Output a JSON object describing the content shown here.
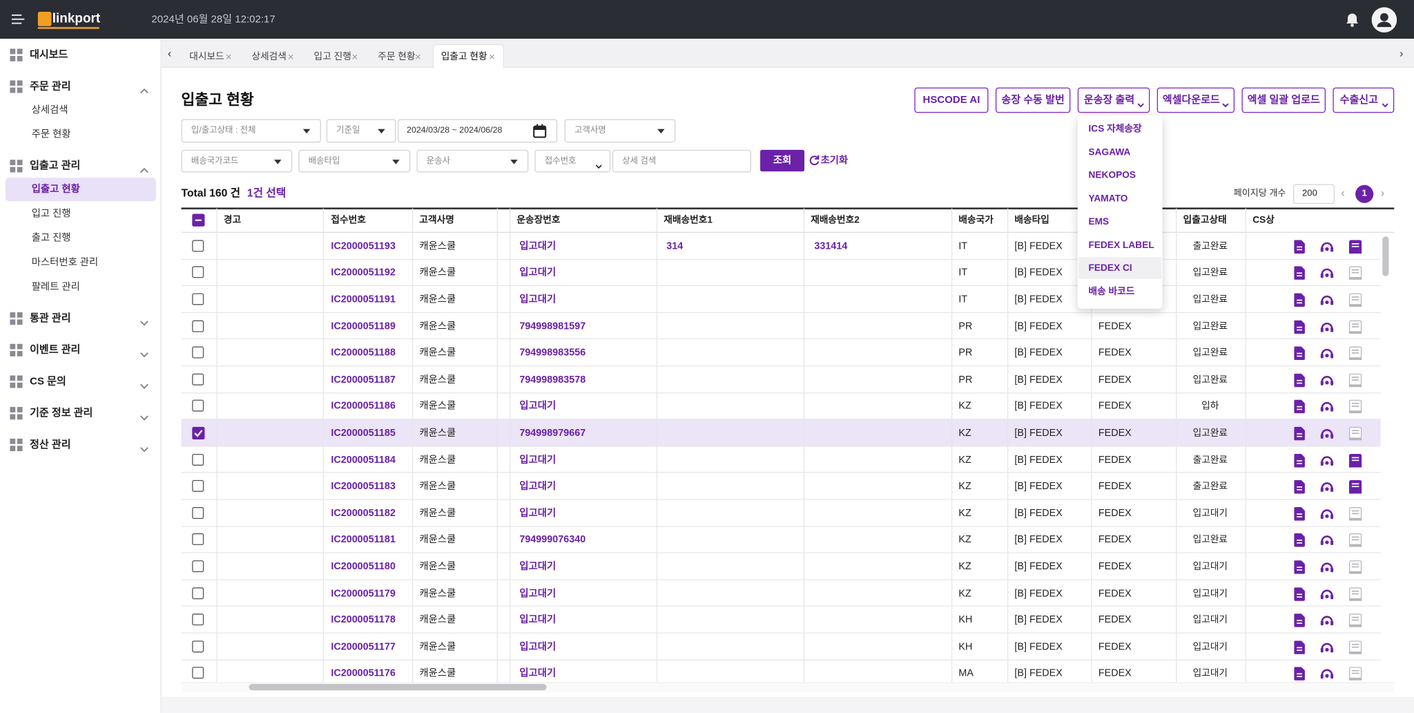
{
  "header": {
    "logo": "linkport",
    "datetime": "2024년 06월 28일 12:02:17"
  },
  "sidebar": [
    {
      "label": "대시보드"
    },
    {
      "label": "주문 관리",
      "children": [
        {
          "label": "상세검색"
        },
        {
          "label": "주문 현황"
        }
      ]
    },
    {
      "label": "입출고 관리",
      "children": [
        {
          "label": "입출고 현황",
          "active": true
        },
        {
          "label": "입고 진행"
        },
        {
          "label": "출고 진행"
        },
        {
          "label": "마스터번호 관리"
        },
        {
          "label": "팔레트 관리"
        }
      ]
    },
    {
      "label": "통관 관리"
    },
    {
      "label": "이벤트 관리"
    },
    {
      "label": "CS 문의"
    },
    {
      "label": "기준 정보 관리"
    },
    {
      "label": "정산 관리"
    }
  ],
  "tabs": [
    "대시보드",
    "상세검색",
    "입고 진행",
    "주문 현황",
    "입출고 현황"
  ],
  "active_tab": 4,
  "page": {
    "title": "입출고 현황",
    "buttons": [
      "HSCODE AI",
      "송장 수동 발번",
      "운송장 출력",
      "엑셀다운로드",
      "엑셀 일괄 업로드",
      "수출신고"
    ]
  },
  "filters": {
    "status": "입/출고상태 : 전체",
    "date_basis": "기준일",
    "date_range": "2024/03/28 ~ 2024/06/28",
    "customer": "고객사명",
    "country_code": "배송국가코드",
    "ship_type": "배송타입",
    "carrier": "운송사",
    "search_field": "접수번호",
    "search_placeholder": "상세 검색",
    "search_button": "조회",
    "reset_button": "초기화"
  },
  "summary": {
    "total": "Total 160 건",
    "selected": "1건 선택",
    "per_page_label": "페이지당 개수",
    "per_page": "200",
    "page": "1"
  },
  "dropdown": [
    "ICS 자체송장",
    "SAGAWA",
    "NEKOPOS",
    "YAMATO",
    "EMS",
    "FEDEX LABEL",
    "FEDEX CI",
    "배송 바코드"
  ],
  "table": {
    "columns": [
      "경고",
      "접수번호",
      "고객사명",
      "운송장번호",
      "재배송번호1",
      "재배송번호2",
      "배송국가",
      "배송타입",
      "입출고상태",
      "CS상"
    ],
    "rows": [
      {
        "id": "IC2000051193",
        "customer": "캐윤스쿨",
        "tracking": "입고대기",
        "re1": "314",
        "re2": "331414",
        "country": "IT",
        "type": "[B] FEDEX",
        "carrier": null,
        "status": "출고완료",
        "checked": false,
        "printed": true
      },
      {
        "id": "IC2000051192",
        "customer": "캐윤스쿨",
        "tracking": "입고대기",
        "re1": null,
        "re2": null,
        "country": "IT",
        "type": "[B] FEDEX",
        "carrier": null,
        "status": "입고완료",
        "checked": false,
        "printed": false
      },
      {
        "id": "IC2000051191",
        "customer": "캐윤스쿨",
        "tracking": "입고대기",
        "re1": null,
        "re2": null,
        "country": "IT",
        "type": "[B] FEDEX",
        "carrier": null,
        "status": "입고완료",
        "checked": false,
        "printed": false
      },
      {
        "id": "IC2000051189",
        "customer": "캐윤스쿨",
        "tracking": "794998981597",
        "re1": null,
        "re2": null,
        "country": "PR",
        "type": "[B] FEDEX",
        "carrier": "FEDEX",
        "status": "입고완료",
        "checked": false,
        "printed": false
      },
      {
        "id": "IC2000051188",
        "customer": "캐윤스쿨",
        "tracking": "794998983556",
        "re1": null,
        "re2": null,
        "country": "PR",
        "type": "[B] FEDEX",
        "carrier": "FEDEX",
        "status": "입고완료",
        "checked": false,
        "printed": false
      },
      {
        "id": "IC2000051187",
        "customer": "캐윤스쿨",
        "tracking": "794998983578",
        "re1": null,
        "re2": null,
        "country": "PR",
        "type": "[B] FEDEX",
        "carrier": "FEDEX",
        "status": "입고완료",
        "checked": false,
        "printed": false
      },
      {
        "id": "IC2000051186",
        "customer": "캐윤스쿨",
        "tracking": "입고대기",
        "re1": null,
        "re2": null,
        "country": "KZ",
        "type": "[B] FEDEX",
        "carrier": "FEDEX",
        "status": "입하",
        "checked": false,
        "printed": false
      },
      {
        "id": "IC2000051185",
        "customer": "캐윤스쿨",
        "tracking": "794998979667",
        "re1": null,
        "re2": null,
        "country": "KZ",
        "type": "[B] FEDEX",
        "carrier": "FEDEX",
        "status": "입고완료",
        "checked": true,
        "printed": false
      },
      {
        "id": "IC2000051184",
        "customer": "캐윤스쿨",
        "tracking": "입고대기",
        "re1": null,
        "re2": null,
        "country": "KZ",
        "type": "[B] FEDEX",
        "carrier": "FEDEX",
        "status": "출고완료",
        "checked": false,
        "printed": true
      },
      {
        "id": "IC2000051183",
        "customer": "캐윤스쿨",
        "tracking": "입고대기",
        "re1": null,
        "re2": null,
        "country": "KZ",
        "type": "[B] FEDEX",
        "carrier": "FEDEX",
        "status": "출고완료",
        "checked": false,
        "printed": true
      },
      {
        "id": "IC2000051182",
        "customer": "캐윤스쿨",
        "tracking": "입고대기",
        "re1": null,
        "re2": null,
        "country": "KZ",
        "type": "[B] FEDEX",
        "carrier": "FEDEX",
        "status": "입고대기",
        "checked": false,
        "printed": false
      },
      {
        "id": "IC2000051181",
        "customer": "캐윤스쿨",
        "tracking": "794999076340",
        "re1": null,
        "re2": null,
        "country": "KZ",
        "type": "[B] FEDEX",
        "carrier": "FEDEX",
        "status": "입고완료",
        "checked": false,
        "printed": false
      },
      {
        "id": "IC2000051180",
        "customer": "캐윤스쿨",
        "tracking": "입고대기",
        "re1": null,
        "re2": null,
        "country": "KZ",
        "type": "[B] FEDEX",
        "carrier": "FEDEX",
        "status": "입고대기",
        "checked": false,
        "printed": false
      },
      {
        "id": "IC2000051179",
        "customer": "캐윤스쿨",
        "tracking": "입고대기",
        "re1": null,
        "re2": null,
        "country": "KZ",
        "type": "[B] FEDEX",
        "carrier": "FEDEX",
        "status": "입고대기",
        "checked": false,
        "printed": false
      },
      {
        "id": "IC2000051178",
        "customer": "캐윤스쿨",
        "tracking": "입고대기",
        "re1": null,
        "re2": null,
        "country": "KH",
        "type": "[B] FEDEX",
        "carrier": "FEDEX",
        "status": "입고대기",
        "checked": false,
        "printed": false
      },
      {
        "id": "IC2000051177",
        "customer": "캐윤스쿨",
        "tracking": "입고대기",
        "re1": null,
        "re2": null,
        "country": "KH",
        "type": "[B] FEDEX",
        "carrier": "FEDEX",
        "status": "입고대기",
        "checked": false,
        "printed": false
      },
      {
        "id": "IC2000051176",
        "customer": "캐윤스쿨",
        "tracking": "입고대기",
        "re1": null,
        "re2": null,
        "country": "MA",
        "type": "[B] FEDEX",
        "carrier": "FEDEX",
        "status": "입고대기",
        "checked": false,
        "printed": false
      }
    ]
  }
}
